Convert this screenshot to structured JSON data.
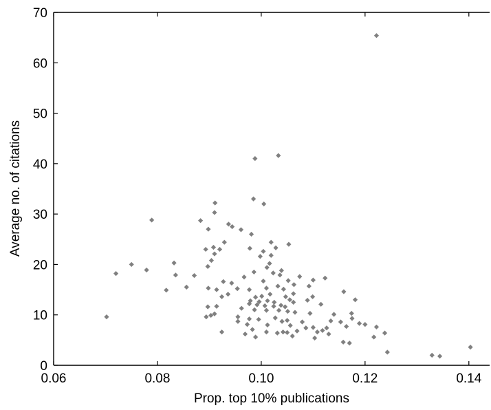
{
  "chart_data": {
    "type": "scatter",
    "title": "",
    "xlabel": "Prop. top 10% publications",
    "ylabel": "Average no. of citations",
    "xlim": [
      0.06,
      0.144
    ],
    "ylim": [
      0,
      70
    ],
    "x_ticks": [
      0.06,
      0.08,
      0.1,
      0.12,
      0.14
    ],
    "x_tick_labels": [
      "0.06",
      "0.08",
      "0.10",
      "0.12",
      "0.14"
    ],
    "y_ticks": [
      0,
      10,
      20,
      30,
      40,
      50,
      60,
      70
    ],
    "y_tick_labels": [
      "0",
      "10",
      "20",
      "30",
      "40",
      "50",
      "60",
      "70"
    ],
    "grid": false,
    "legend": "none",
    "marker": "diamond",
    "marker_color": "#808080",
    "points": [
      [
        0.1222,
        65.4
      ],
      [
        0.1033,
        41.6
      ],
      [
        0.0988,
        41.0
      ],
      [
        0.0985,
        33.0
      ],
      [
        0.1005,
        32.0
      ],
      [
        0.0911,
        32.2
      ],
      [
        0.091,
        30.3
      ],
      [
        0.0789,
        28.8
      ],
      [
        0.0883,
        28.7
      ],
      [
        0.0937,
        28.0
      ],
      [
        0.0944,
        27.5
      ],
      [
        0.0961,
        26.9
      ],
      [
        0.0898,
        27.0
      ],
      [
        0.0981,
        26.0
      ],
      [
        0.0929,
        24.4
      ],
      [
        0.1019,
        24.4
      ],
      [
        0.1053,
        24.0
      ],
      [
        0.1028,
        23.3
      ],
      [
        0.0908,
        23.4
      ],
      [
        0.092,
        23.0
      ],
      [
        0.0893,
        23.0
      ],
      [
        0.0978,
        23.2
      ],
      [
        0.1004,
        22.6
      ],
      [
        0.1019,
        21.8
      ],
      [
        0.091,
        22.1
      ],
      [
        0.0998,
        21.6
      ],
      [
        0.0904,
        20.8
      ],
      [
        0.1016,
        20.2
      ],
      [
        0.0897,
        19.6
      ],
      [
        0.1011,
        19.4
      ],
      [
        0.1039,
        18.8
      ],
      [
        0.075,
        20.0
      ],
      [
        0.0832,
        20.3
      ],
      [
        0.072,
        18.2
      ],
      [
        0.0779,
        18.9
      ],
      [
        0.0835,
        17.9
      ],
      [
        0.0871,
        17.8
      ],
      [
        0.0986,
        18.5
      ],
      [
        0.1023,
        18.3
      ],
      [
        0.1036,
        17.9
      ],
      [
        0.1074,
        17.6
      ],
      [
        0.11,
        16.9
      ],
      [
        0.1123,
        17.3
      ],
      [
        0.0967,
        17.5
      ],
      [
        0.0927,
        16.6
      ],
      [
        0.0943,
        16.3
      ],
      [
        0.1004,
        16.7
      ],
      [
        0.1052,
        16.8
      ],
      [
        0.1063,
        16.0
      ],
      [
        0.1092,
        15.7
      ],
      [
        0.0954,
        15.2
      ],
      [
        0.0977,
        15.0
      ],
      [
        0.101,
        15.3
      ],
      [
        0.1032,
        15.7
      ],
      [
        0.1043,
        15.1
      ],
      [
        0.0914,
        15.0
      ],
      [
        0.0898,
        15.3
      ],
      [
        0.0856,
        15.5
      ],
      [
        0.0817,
        14.9
      ],
      [
        0.1159,
        14.6
      ],
      [
        0.1062,
        14.2
      ],
      [
        0.1017,
        14.1
      ],
      [
        0.1001,
        13.7
      ],
      [
        0.0936,
        14.1
      ],
      [
        0.0924,
        13.6
      ],
      [
        0.0989,
        13.5
      ],
      [
        0.1047,
        13.6
      ],
      [
        0.1055,
        13.0
      ],
      [
        0.1089,
        12.9
      ],
      [
        0.0979,
        12.8
      ],
      [
        0.0996,
        12.6
      ],
      [
        0.1012,
        12.8
      ],
      [
        0.1025,
        12.5
      ],
      [
        0.0977,
        12.2
      ],
      [
        0.0992,
        12.0
      ],
      [
        0.1007,
        11.8
      ],
      [
        0.1024,
        11.7
      ],
      [
        0.1038,
        11.9
      ],
      [
        0.1046,
        11.6
      ],
      [
        0.1062,
        12.5
      ],
      [
        0.1115,
        12.1
      ],
      [
        0.1099,
        13.6
      ],
      [
        0.0897,
        11.6
      ],
      [
        0.0914,
        11.7
      ],
      [
        0.0962,
        11.3
      ],
      [
        0.0987,
        11.0
      ],
      [
        0.101,
        10.9
      ],
      [
        0.1034,
        10.9
      ],
      [
        0.1051,
        10.7
      ],
      [
        0.1065,
        10.5
      ],
      [
        0.1094,
        10.3
      ],
      [
        0.114,
        10.1
      ],
      [
        0.1174,
        10.3
      ],
      [
        0.1181,
        13.0
      ],
      [
        0.0894,
        9.6
      ],
      [
        0.0903,
        9.9
      ],
      [
        0.091,
        10.2
      ],
      [
        0.0955,
        9.6
      ],
      [
        0.0977,
        9.2
      ],
      [
        0.0995,
        9.1
      ],
      [
        0.1027,
        9.4
      ],
      [
        0.104,
        8.7
      ],
      [
        0.105,
        8.9
      ],
      [
        0.1079,
        8.6
      ],
      [
        0.1134,
        8.8
      ],
      [
        0.1153,
        8.6
      ],
      [
        0.1189,
        8.3
      ],
      [
        0.12,
        8.1
      ],
      [
        0.1175,
        9.3
      ],
      [
        0.0702,
        9.6
      ],
      [
        0.0955,
        8.7
      ],
      [
        0.0973,
        8.1
      ],
      [
        0.1012,
        8.0
      ],
      [
        0.1056,
        7.9
      ],
      [
        0.1086,
        7.4
      ],
      [
        0.11,
        7.5
      ],
      [
        0.1126,
        7.4
      ],
      [
        0.1164,
        7.7
      ],
      [
        0.1222,
        7.6
      ],
      [
        0.1238,
        6.4
      ],
      [
        0.1118,
        6.9
      ],
      [
        0.1108,
        6.6
      ],
      [
        0.1069,
        6.8
      ],
      [
        0.1042,
        6.6
      ],
      [
        0.1031,
        6.4
      ],
      [
        0.101,
        6.6
      ],
      [
        0.0983,
        7.1
      ],
      [
        0.0924,
        6.6
      ],
      [
        0.0969,
        6.2
      ],
      [
        0.105,
        6.5
      ],
      [
        0.113,
        6.2
      ],
      [
        0.0989,
        5.6
      ],
      [
        0.1103,
        5.4
      ],
      [
        0.1217,
        5.6
      ],
      [
        0.1158,
        4.6
      ],
      [
        0.117,
        4.4
      ],
      [
        0.106,
        5.8
      ],
      [
        0.1243,
        2.6
      ],
      [
        0.1329,
        2.0
      ],
      [
        0.1344,
        1.8
      ],
      [
        0.1403,
        3.6
      ]
    ]
  }
}
